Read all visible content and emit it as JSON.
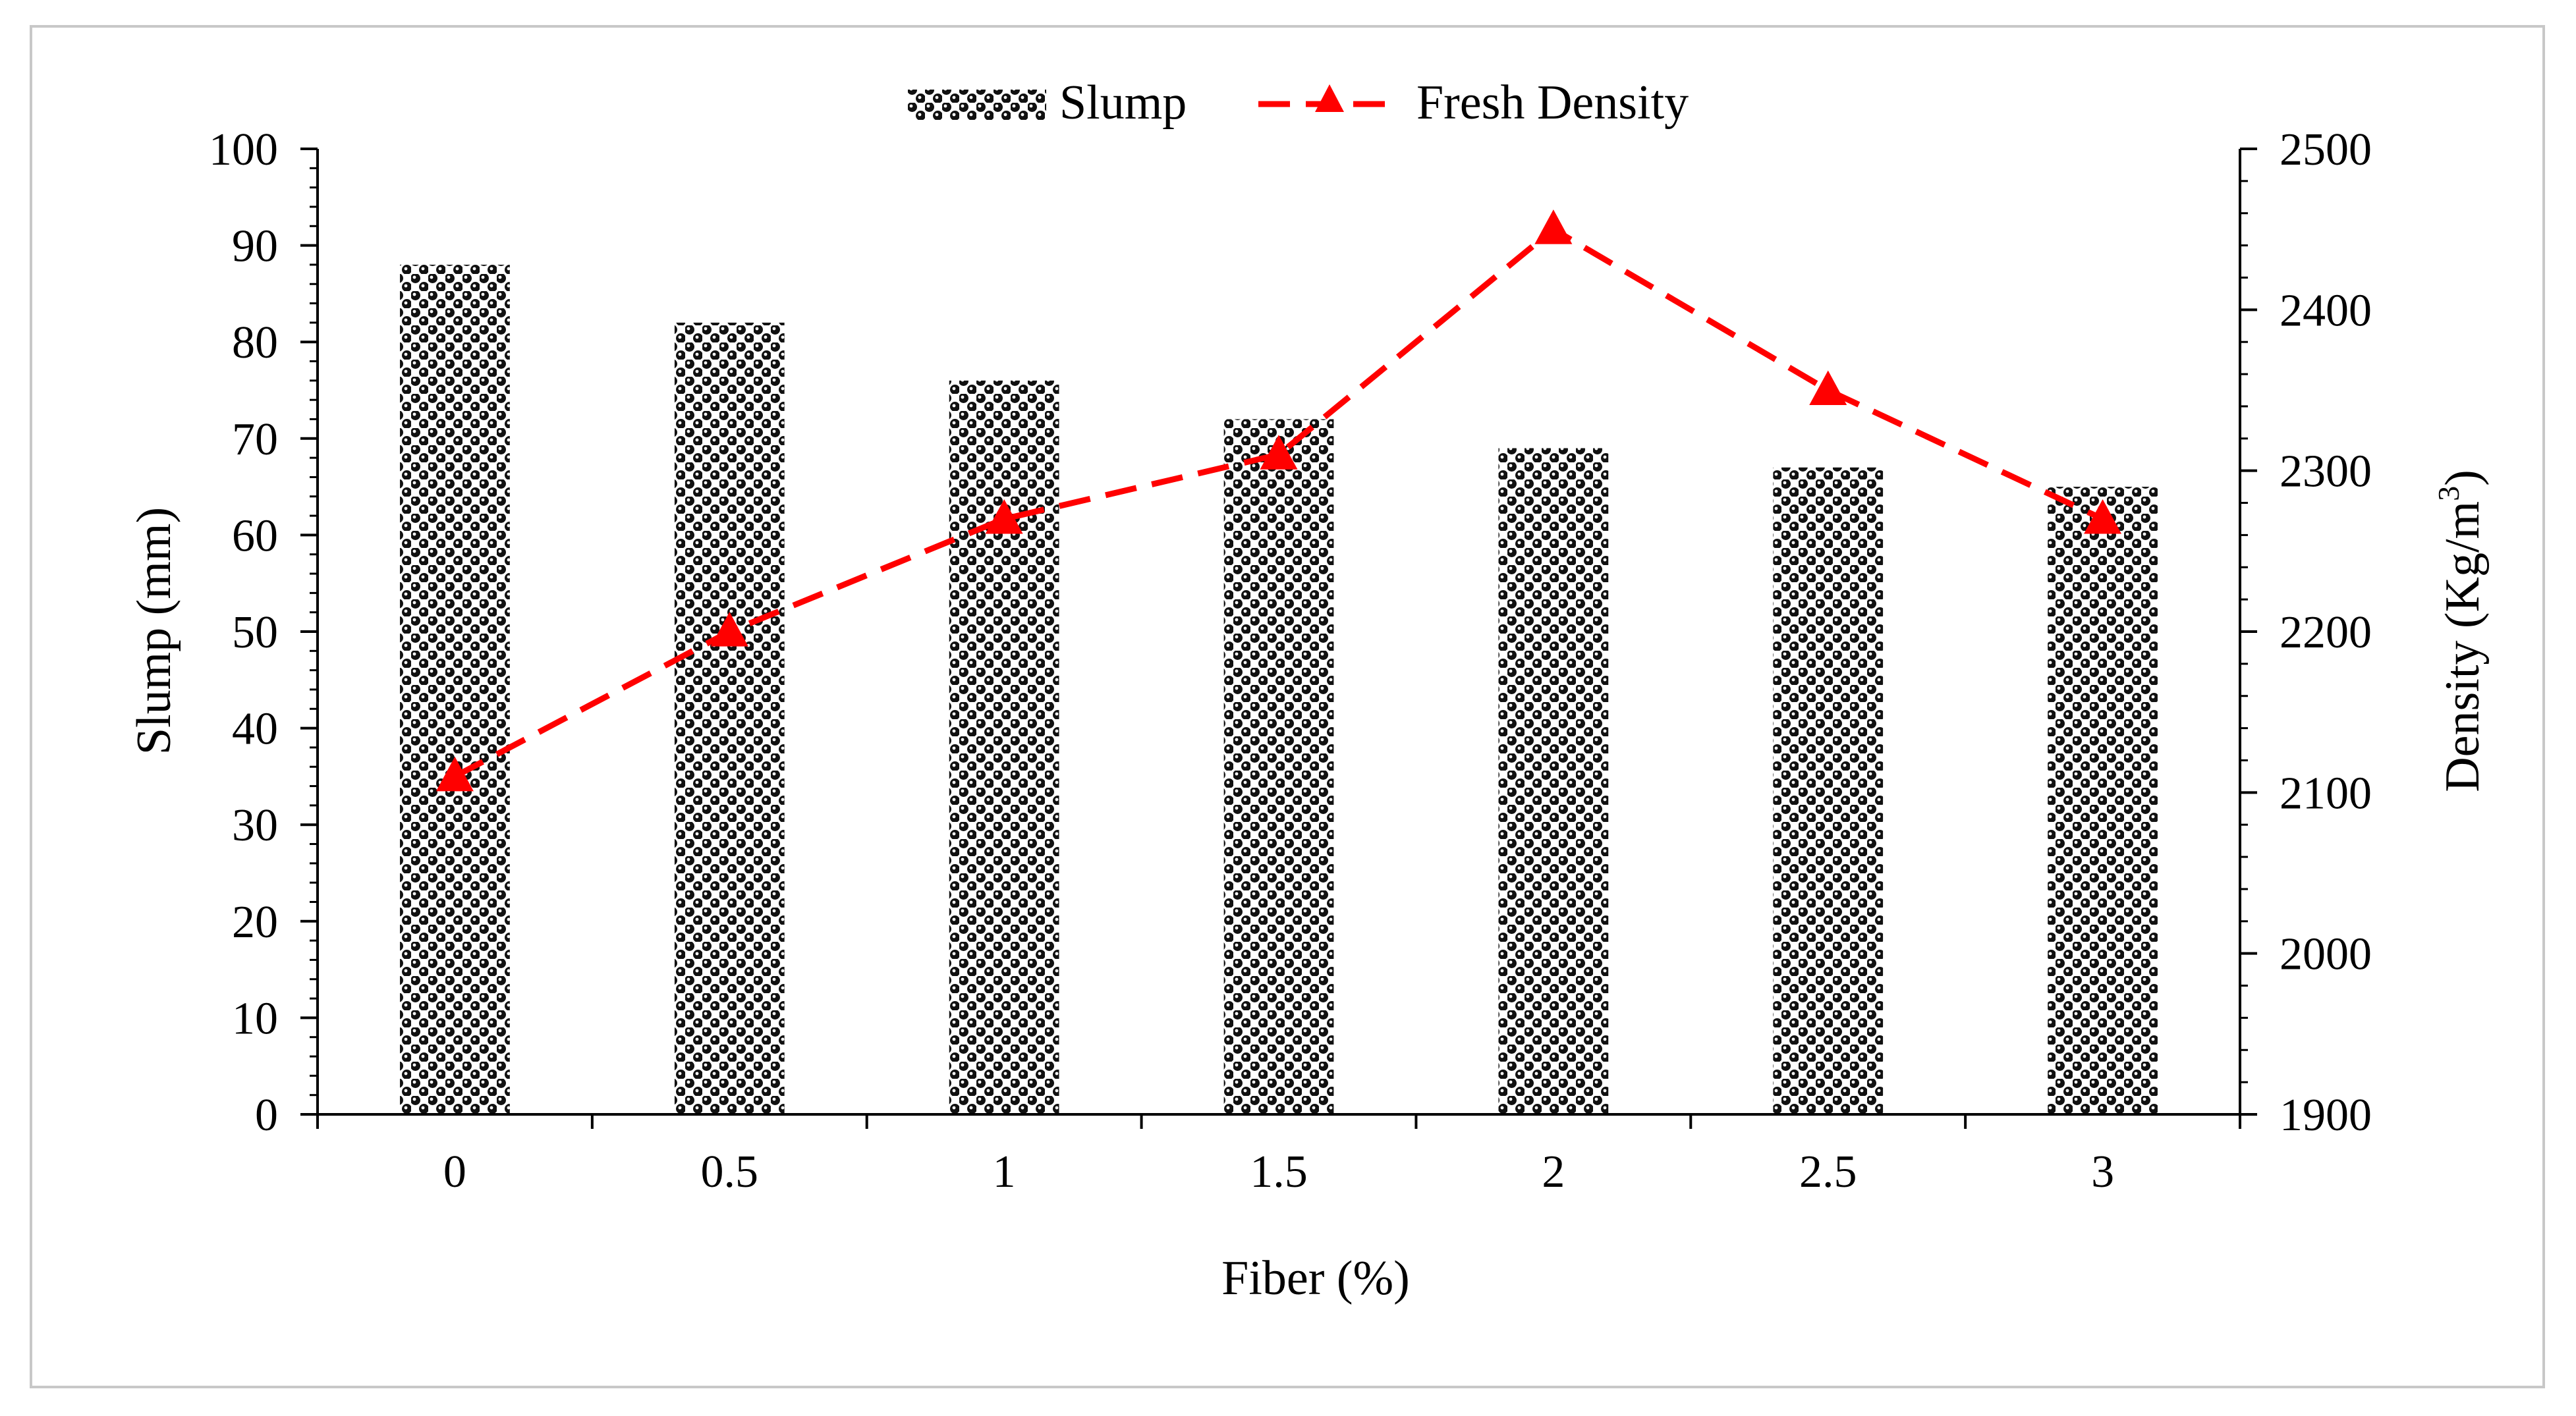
{
  "chart_data": {
    "type": "bar",
    "title": "",
    "xlabel": "Fiber (%)",
    "ylabel": "Slump (mm)",
    "y2label_main": "Density (Kg/m",
    "y2label_sup": "3",
    "y2label_close": ")",
    "categories": [
      "0",
      "0.5",
      "1",
      "1.5",
      "2",
      "2.5",
      "3"
    ],
    "ylim": [
      0,
      100
    ],
    "y_ticks": [
      "0",
      "10",
      "20",
      "30",
      "40",
      "50",
      "60",
      "70",
      "80",
      "90",
      "100"
    ],
    "y2lim": [
      1900,
      2500
    ],
    "y2_ticks": [
      "1900",
      "2000",
      "2100",
      "2200",
      "2300",
      "2400",
      "2500"
    ],
    "series": [
      {
        "name": "Slump",
        "type": "bar",
        "axis": "left",
        "values": [
          88,
          82,
          76,
          72,
          69,
          67,
          65
        ]
      },
      {
        "name": "Fresh Density",
        "type": "line",
        "axis": "right",
        "marker": "triangle",
        "dash": "dashed",
        "values": [
          2110,
          2200,
          2270,
          2310,
          2450,
          2350,
          2270
        ]
      }
    ],
    "legend_position": "top-center",
    "grid": false,
    "colors": {
      "bar_pattern": "#000000",
      "line": "#ff0000",
      "axis": "#000000",
      "frame": "#c8c8c8"
    }
  }
}
